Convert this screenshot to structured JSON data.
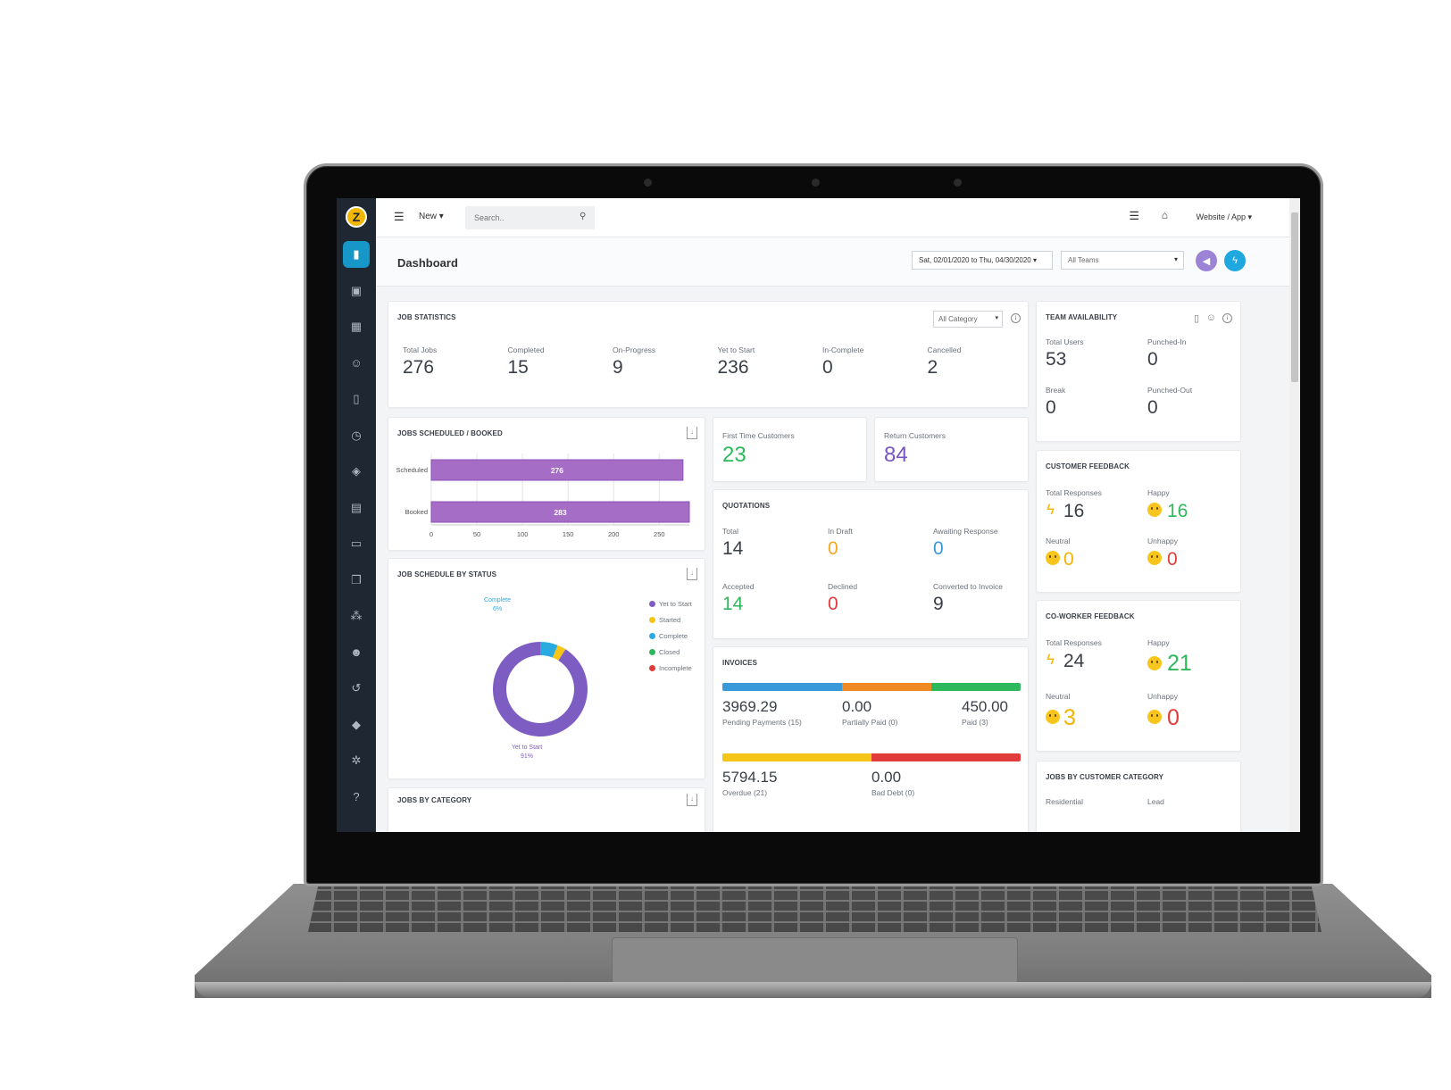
{
  "colors": {
    "sidebar": "#1f2733",
    "accent": "#1796c8",
    "purple": "#7955bf",
    "green": "#2eb85c",
    "orange": "#f5a623",
    "red": "#e23b3b",
    "yellow": "#f5c518",
    "blue": "#3a9ad9",
    "bar": "#a66dc7"
  },
  "sidebar": {
    "logo_letter": "Z",
    "items": [
      {
        "name": "dashboard-icon",
        "glyph": "▮",
        "active": true
      },
      {
        "name": "briefcase-icon",
        "glyph": "▣"
      },
      {
        "name": "calendar-icon",
        "glyph": "▦"
      },
      {
        "name": "customers-icon",
        "glyph": "☺"
      },
      {
        "name": "map-icon",
        "glyph": "▯"
      },
      {
        "name": "clock-icon",
        "glyph": "◷"
      },
      {
        "name": "tag-icon",
        "glyph": "◈"
      },
      {
        "name": "estimates-icon",
        "glyph": "▤"
      },
      {
        "name": "folder-icon",
        "glyph": "▭"
      },
      {
        "name": "documents-icon",
        "glyph": "❐"
      },
      {
        "name": "team-icon",
        "glyph": "⁂"
      },
      {
        "name": "user-icon",
        "glyph": "☻"
      },
      {
        "name": "history-icon",
        "glyph": "↺"
      },
      {
        "name": "layers-icon",
        "glyph": "◆"
      },
      {
        "name": "settings-icon",
        "glyph": "✲"
      },
      {
        "name": "help-icon",
        "glyph": "?"
      }
    ]
  },
  "topbar": {
    "menu_glyph": "☰",
    "new_label": "New ▾",
    "search_placeholder": "Search..",
    "search_glyph": "⚲",
    "list_glyph": "☰",
    "gift_glyph": "⌂",
    "site_label": "Website / App ▾"
  },
  "dashboard": {
    "title": "Dashboard",
    "date_range": "Sat, 02/01/2020 to Thu, 04/30/2020 ▾",
    "team_filter": "All Teams",
    "caret": "▾",
    "announce_glyph": "◀",
    "bolt_glyph": "ϟ"
  },
  "job_statistics": {
    "title": "JOB STATISTICS",
    "category_filter": "All Category",
    "stats": [
      {
        "label": "Total Jobs",
        "value": "276"
      },
      {
        "label": "Completed",
        "value": "15"
      },
      {
        "label": "On-Progress",
        "value": "9"
      },
      {
        "label": "Yet to Start",
        "value": "236"
      },
      {
        "label": "In-Complete",
        "value": "0"
      },
      {
        "label": "Cancelled",
        "value": "2"
      }
    ]
  },
  "team_availability": {
    "title": "TEAM AVAILABILITY",
    "stats": [
      {
        "label": "Total Users",
        "value": "53"
      },
      {
        "label": "Punched-In",
        "value": "0"
      },
      {
        "label": "Break",
        "value": "0"
      },
      {
        "label": "Punched-Out",
        "value": "0"
      }
    ]
  },
  "jobs_scheduled": {
    "title": "JOBS SCHEDULED / BOOKED"
  },
  "chart_data": [
    {
      "type": "bar",
      "orientation": "horizontal",
      "title": "JOBS SCHEDULED / BOOKED",
      "categories": [
        "Scheduled",
        "Booked"
      ],
      "values": [
        276,
        283
      ],
      "xlim": [
        0,
        283
      ],
      "xticks": [
        0,
        50,
        100,
        150,
        200,
        250
      ],
      "grid": true
    },
    {
      "type": "pie",
      "variant": "donut",
      "title": "JOB SCHEDULE BY STATUS",
      "categories": [
        "Yet to Start",
        "Started",
        "Complete",
        "Closed",
        "Incomplete"
      ],
      "values": [
        91,
        3,
        6,
        0,
        0
      ],
      "colors": [
        "#7e5dc3",
        "#f5c518",
        "#29abe2",
        "#2eb85c",
        "#e23b3b"
      ],
      "data_labels": [
        {
          "name": "Complete",
          "percent": "6%"
        },
        {
          "name": "Yet to Start",
          "percent": "91%"
        }
      ],
      "legend": "right"
    }
  ],
  "job_schedule_status": {
    "title": "JOB SCHEDULE BY STATUS"
  },
  "customers": {
    "first_time": {
      "label": "First Time Customers",
      "value": "23"
    },
    "returning": {
      "label": "Return Customers",
      "value": "84"
    }
  },
  "quotations": {
    "title": "QUOTATIONS",
    "stats": [
      {
        "label": "Total",
        "value": "14"
      },
      {
        "label": "In Draft",
        "value": "0"
      },
      {
        "label": "Awaiting Response",
        "value": "0"
      },
      {
        "label": "Accepted",
        "value": "14"
      },
      {
        "label": "Declined",
        "value": "0"
      },
      {
        "label": "Converted to Invoice",
        "value": "9"
      }
    ]
  },
  "invoices": {
    "title": "INVOICES",
    "bar1": [
      {
        "label": "Pending Payments (15)",
        "value": "3969.29",
        "color": "#3a9ad9",
        "share": 0.4
      },
      {
        "label": "Partially Paid (0)",
        "value": "0.00",
        "color": "#f08a24",
        "share": 0.3
      },
      {
        "label": "Paid (3)",
        "value": "450.00",
        "color": "#2eb85c",
        "share": 0.3
      }
    ],
    "bar2": [
      {
        "label": "Overdue (21)",
        "value": "5794.15",
        "color": "#f5c518",
        "share": 0.5
      },
      {
        "label": "Bad Debt (0)",
        "value": "0.00",
        "color": "#e23b3b",
        "share": 0.5
      }
    ]
  },
  "customer_feedback": {
    "title": "CUSTOMER FEEDBACK",
    "total": {
      "label": "Total Responses",
      "value": "16"
    },
    "happy": {
      "label": "Happy",
      "value": "16"
    },
    "neutral": {
      "label": "Neutral",
      "value": "0"
    },
    "unhappy": {
      "label": "Unhappy",
      "value": "0"
    }
  },
  "coworker_feedback": {
    "title": "CO-WORKER FEEDBACK",
    "total": {
      "label": "Total Responses",
      "value": "24"
    },
    "happy": {
      "label": "Happy",
      "value": "21"
    },
    "neutral": {
      "label": "Neutral",
      "value": "3"
    },
    "unhappy": {
      "label": "Unhappy",
      "value": "0"
    }
  },
  "jobs_by_customer_category": {
    "title": "JOBS BY CUSTOMER CATEGORY",
    "col1": "Residential",
    "col2": "Lead"
  },
  "jobs_by_category": {
    "title": "JOBS BY CATEGORY"
  }
}
